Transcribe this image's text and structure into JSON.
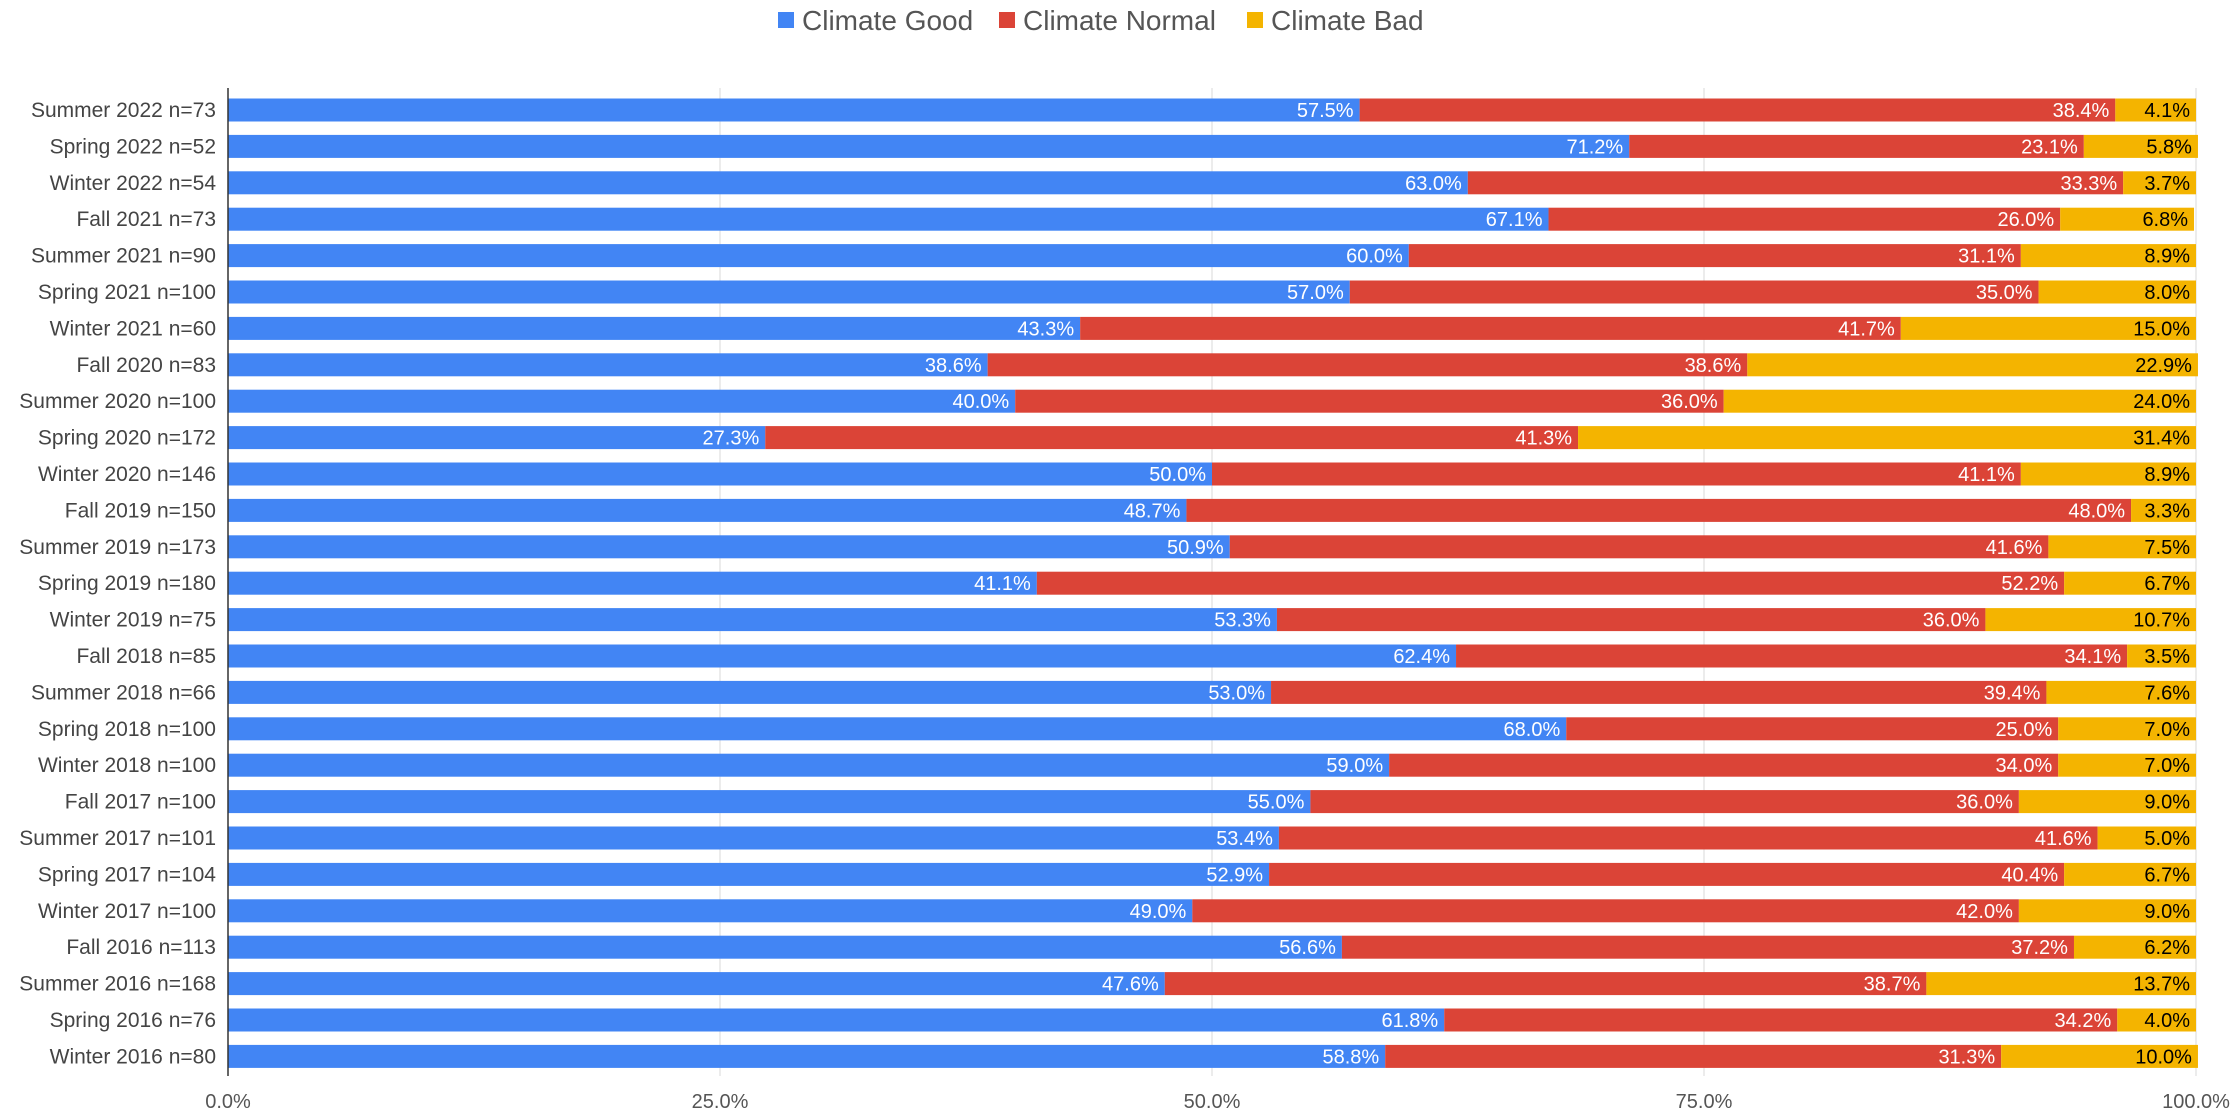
{
  "chart_data": {
    "type": "bar",
    "orientation": "horizontal",
    "stacked": true,
    "legend_position": "top",
    "grid": true,
    "xlim": [
      0,
      100
    ],
    "x_ticks": [
      "0.0%",
      "25.0%",
      "50.0%",
      "75.0%",
      "100.0%"
    ],
    "x_tick_values": [
      0,
      25,
      50,
      75,
      100
    ],
    "categories": [
      "Summer 2022 n=73",
      "Spring 2022 n=52",
      "Winter 2022 n=54",
      "Fall 2021 n=73",
      "Summer 2021 n=90",
      "Spring 2021 n=100",
      "Winter 2021 n=60",
      "Fall 2020 n=83",
      "Summer 2020 n=100",
      "Spring 2020 n=172",
      "Winter 2020 n=146",
      "Fall 2019 n=150",
      "Summer 2019 n=173",
      "Spring 2019 n=180",
      "Winter 2019 n=75",
      "Fall 2018 n=85",
      "Summer 2018 n=66",
      "Spring 2018 n=100",
      "Winter 2018 n=100",
      "Fall 2017 n=100",
      "Summer 2017 n=101",
      "Spring 2017 n=104",
      "Winter 2017 n=100",
      "Fall 2016 n=113",
      "Summer 2016 n=168",
      "Spring 2016 n=76",
      "Winter 2016 n=80"
    ],
    "series": [
      {
        "name": "Climate Good",
        "color": "#4285F4",
        "label_color": "#ffffff",
        "values": [
          57.5,
          71.2,
          63.0,
          67.1,
          60.0,
          57.0,
          43.3,
          38.6,
          40.0,
          27.3,
          50.0,
          48.7,
          50.9,
          41.1,
          53.3,
          62.4,
          53.0,
          68.0,
          59.0,
          55.0,
          53.4,
          52.9,
          49.0,
          56.6,
          47.6,
          61.8,
          58.8
        ]
      },
      {
        "name": "Climate Normal",
        "color": "#DB4437",
        "label_color": "#ffffff",
        "values": [
          38.4,
          23.1,
          33.3,
          26.0,
          31.1,
          35.0,
          41.7,
          38.6,
          36.0,
          41.3,
          41.1,
          48.0,
          41.6,
          52.2,
          36.0,
          34.1,
          39.4,
          25.0,
          34.0,
          36.0,
          41.6,
          40.4,
          42.0,
          37.2,
          38.7,
          34.2,
          31.3
        ]
      },
      {
        "name": "Climate Bad",
        "color": "#F4B400",
        "label_color": "#000000",
        "values": [
          4.1,
          5.8,
          3.7,
          6.8,
          8.9,
          8.0,
          15.0,
          22.9,
          24.0,
          31.4,
          8.9,
          3.3,
          7.5,
          6.7,
          10.7,
          3.5,
          7.6,
          7.0,
          7.0,
          9.0,
          5.0,
          6.7,
          9.0,
          6.2,
          13.7,
          4.0,
          10.0
        ]
      }
    ]
  }
}
